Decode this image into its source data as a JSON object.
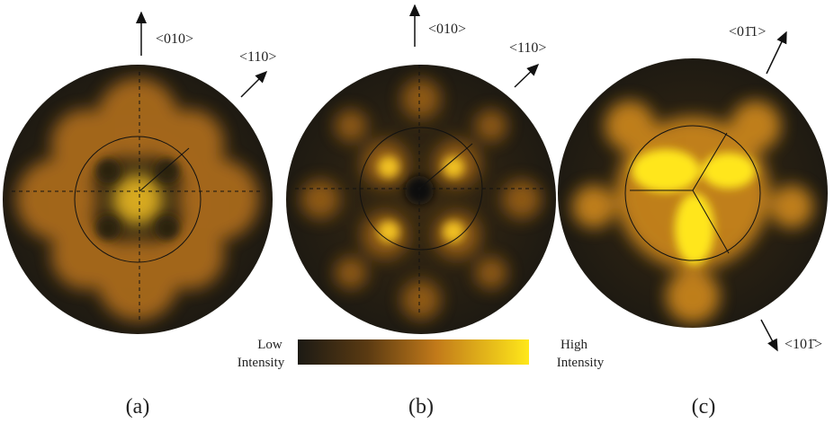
{
  "panels": [
    {
      "label": "(a)",
      "directions": [
        "<010>",
        "<110>"
      ]
    },
    {
      "label": "(b)",
      "directions": [
        "<010>",
        "<110>"
      ]
    },
    {
      "label": "(c)",
      "directions": [
        "<01̄1>",
        "<101̄>"
      ]
    }
  ],
  "colorbar": {
    "low": [
      "Low",
      "Intensity"
    ],
    "high": [
      "High",
      "Intensity"
    ]
  }
}
